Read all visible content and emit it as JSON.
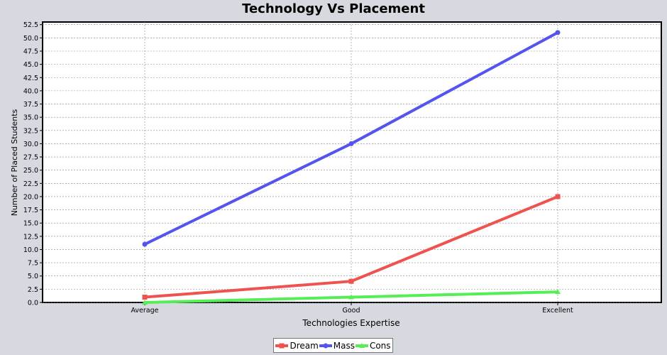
{
  "chart_data": {
    "type": "line",
    "title": "Technology Vs Placement",
    "xlabel": "Technologies Expertise",
    "ylabel": "Number of Placed Students",
    "categories": [
      "Average",
      "Good",
      "Excellent"
    ],
    "ylim": [
      0,
      53
    ],
    "yticks": [
      "0.0",
      "2.5",
      "5.0",
      "7.5",
      "10.0",
      "12.5",
      "15.0",
      "17.5",
      "20.0",
      "22.5",
      "25.0",
      "27.5",
      "30.0",
      "32.5",
      "35.0",
      "37.5",
      "40.0",
      "42.5",
      "45.0",
      "47.5",
      "50.0",
      "52.5"
    ],
    "grid": true,
    "legend_position": "bottom",
    "series": [
      {
        "name": "Dream",
        "values": [
          1,
          4,
          20
        ],
        "color": "#ef5350",
        "marker": "square"
      },
      {
        "name": "Mass",
        "values": [
          11,
          30,
          51
        ],
        "color": "#5454ee",
        "marker": "circle"
      },
      {
        "name": "Cons",
        "values": [
          0,
          1,
          2
        ],
        "color": "#55ee55",
        "marker": "triangle"
      }
    ]
  }
}
